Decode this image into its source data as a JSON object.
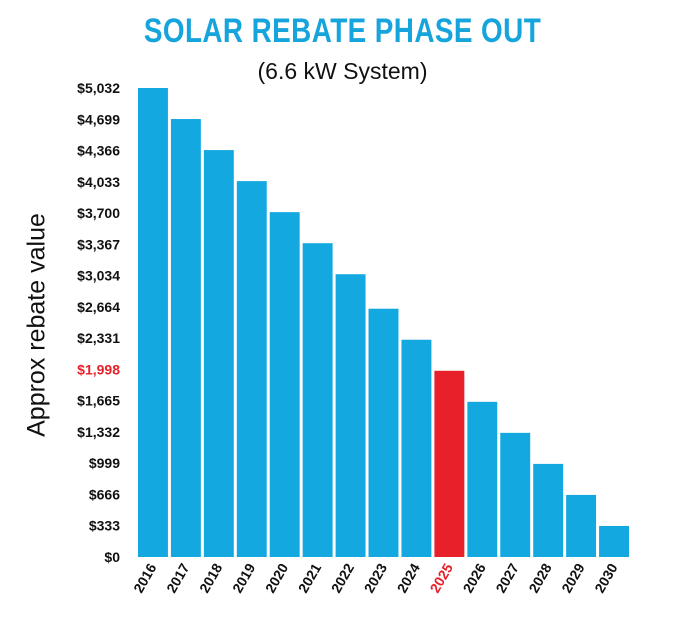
{
  "chart_data": {
    "type": "bar",
    "title": "SOLAR REBATE PHASE OUT",
    "subtitle": "(6.6 kW System)",
    "ylabel": "Approx rebate value",
    "xlabel": "",
    "categories": [
      "2016",
      "2017",
      "2018",
      "2019",
      "2020",
      "2021",
      "2022",
      "2023",
      "2024",
      "2025",
      "2026",
      "2027",
      "2028",
      "2029",
      "2030"
    ],
    "values": [
      5032,
      4699,
      4366,
      4033,
      3700,
      3367,
      3034,
      2664,
      2331,
      1998,
      1665,
      1332,
      999,
      666,
      333
    ],
    "highlight_category": "2025",
    "yticks": [
      "$0",
      "$333",
      "$666",
      "$999",
      "$1,332",
      "$1,665",
      "$1,998",
      "$2,331",
      "$2,664",
      "$3,034",
      "$3,367",
      "$3,700",
      "$4,033",
      "$4,366",
      "$4,699",
      "$5,032"
    ],
    "highlight_ytick": "$1,998",
    "ylim": [
      0,
      5032
    ],
    "colors": {
      "bar": "#14a8e0",
      "highlight": "#e8202a",
      "title": "#16a4dc",
      "text": "#111111"
    }
  }
}
